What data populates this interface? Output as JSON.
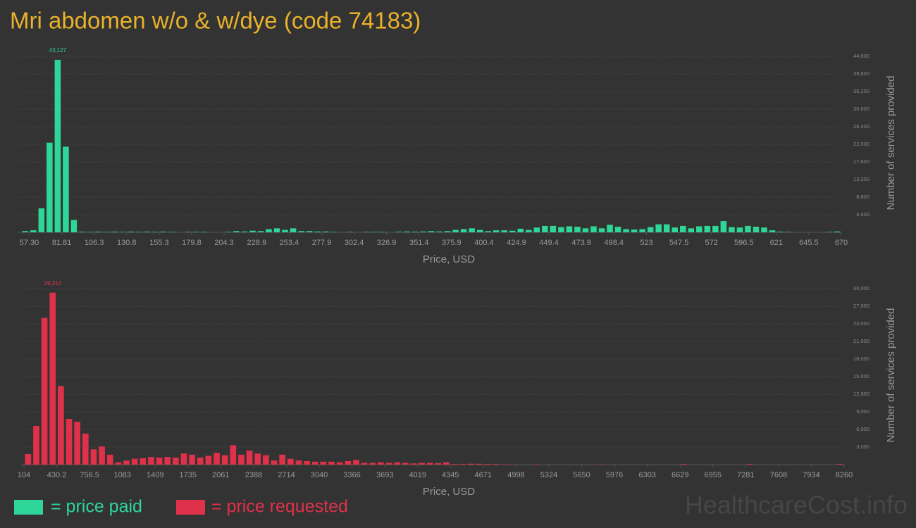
{
  "title": "Mri abdomen w/o & w/dye (code 74183)",
  "watermark": "HealthcareCost.info",
  "chart_data": [
    {
      "type": "histogram",
      "bins": [
        51.17,
        57.3,
        63.43,
        69.55,
        75.68,
        81.81,
        87.94,
        94.06,
        100.19,
        106.32,
        112.44,
        118.57,
        124.7,
        130.82,
        136.95,
        143.08,
        149.21,
        155.33,
        161.46,
        167.59,
        173.71,
        179.84,
        185.97,
        192.09,
        198.22,
        204.35,
        210.48,
        216.6,
        222.73,
        228.86,
        234.98,
        241.11,
        247.24,
        253.36,
        259.49,
        265.62,
        271.74,
        277.87,
        284.0,
        290.13,
        296.25,
        302.38,
        308.51,
        314.63,
        320.76,
        326.89,
        333.02,
        339.14,
        345.27,
        351.4,
        357.52,
        363.65,
        369.78,
        375.9,
        382.03,
        388.16,
        394.29,
        400.41,
        406.54,
        412.67,
        418.79,
        424.92,
        431.05,
        437.17,
        443.3,
        449.43,
        455.56,
        461.68,
        467.81,
        473.94,
        480.06,
        486.19,
        492.32,
        498.44,
        504.57,
        510.7,
        516.83,
        522.95,
        529.08,
        535.21,
        541.33,
        547.46,
        553.59,
        559.71,
        565.84,
        571.97,
        578.1,
        584.22,
        590.35,
        596.48,
        602.6,
        608.73,
        614.86,
        620.98,
        627.11,
        633.24,
        639.37,
        645.49,
        651.62,
        657.75,
        663.87,
        670.0
      ],
      "series": [
        {
          "name": "= price paid",
          "color": "#2ed69a",
          "values": [
            300,
            500,
            6000,
            22400,
            43127,
            21400,
            3100,
            150,
            100,
            150,
            100,
            150,
            100,
            150,
            100,
            150,
            100,
            150,
            100,
            0,
            100,
            100,
            100,
            0,
            0,
            100,
            300,
            200,
            400,
            300,
            800,
            1000,
            600,
            1000,
            300,
            300,
            200,
            200,
            100,
            0,
            100,
            0,
            100,
            100,
            100,
            0,
            150,
            200,
            150,
            200,
            300,
            200,
            300,
            600,
            800,
            1000,
            600,
            300,
            500,
            500,
            400,
            900,
            600,
            1200,
            1600,
            1600,
            1300,
            1500,
            1400,
            1000,
            1500,
            1000,
            1900,
            1400,
            800,
            700,
            800,
            1300,
            2000,
            2000,
            1200,
            1600,
            1000,
            1500,
            1600,
            1600,
            2800,
            1300,
            1200,
            1600,
            1400,
            1200,
            500,
            150,
            100,
            0,
            0,
            0,
            0,
            100,
            200
          ],
          "value_labels": [
            null,
            null,
            null,
            null,
            "43,127",
            null,
            null,
            null,
            null,
            null,
            null,
            null,
            null,
            null,
            null,
            null,
            null,
            null,
            null,
            null,
            null,
            null,
            null,
            null,
            null,
            null,
            null,
            null,
            null,
            null,
            null,
            null,
            null,
            null,
            null,
            null,
            null,
            null,
            null,
            null,
            null,
            null,
            null,
            null,
            null,
            null,
            null,
            null,
            null,
            null,
            null,
            null,
            null,
            null,
            null,
            null,
            null,
            null,
            null,
            null,
            null,
            null,
            null,
            null,
            null,
            null,
            null,
            null,
            null,
            null,
            null,
            null,
            null,
            null,
            null,
            null,
            null,
            null,
            null,
            null,
            null,
            null,
            null,
            null,
            null,
            null,
            null,
            null,
            null,
            null,
            null,
            null,
            null,
            null,
            null,
            null,
            null,
            null,
            null,
            null,
            null
          ]
        }
      ],
      "xlim": [
        51.17,
        670
      ],
      "ylim": [
        0,
        44000
      ],
      "xticks": [
        {
          "value": 57.3,
          "label": "57.30"
        },
        81.81,
        106.3,
        130.8,
        155.3,
        179.8,
        204.3,
        228.9,
        253.4,
        277.9,
        302.4,
        326.9,
        351.4,
        375.9,
        400.4,
        424.9,
        449.4,
        473.9,
        498.4,
        523,
        547.5,
        572,
        596.5,
        621,
        645.5,
        670
      ],
      "yticks": [
        {
          "value": 4400,
          "label": "4,400"
        },
        {
          "value": 8800,
          "label": "8,800"
        },
        {
          "value": 13200,
          "label": "13,200"
        },
        {
          "value": 17600,
          "label": "17,600"
        },
        {
          "value": 22000,
          "label": "22,000"
        },
        {
          "value": 26400,
          "label": "26,400"
        },
        {
          "value": 30800,
          "label": "30,800"
        },
        {
          "value": 35200,
          "label": "35,200"
        },
        {
          "value": 39600,
          "label": "39,600"
        },
        {
          "value": 44000,
          "label": "44,000"
        }
      ],
      "xlabel": "Price, USD",
      "ylabel": "Number of services provided",
      "grid": true
    },
    {
      "type": "histogram",
      "bins": [
        104,
        185.56,
        267.12,
        348.68,
        430.24,
        511.8,
        593.36,
        674.92,
        756.48,
        838.04,
        919.6,
        1001.16,
        1082.72,
        1164.28,
        1245.84,
        1327.4,
        1408.96,
        1490.52,
        1572.08,
        1653.64,
        1735.2,
        1816.76,
        1898.32,
        1979.88,
        2061.44,
        2143,
        2224.56,
        2306.12,
        2387.68,
        2469.24,
        2550.8,
        2632.36,
        2713.92,
        2795.48,
        2877.04,
        2958.6,
        3040.16,
        3121.72,
        3203.28,
        3284.84,
        3366.4,
        3447.96,
        3529.52,
        3611.08,
        3692.64,
        3774.2,
        3855.76,
        3937.32,
        4018.88,
        4100.44,
        4182,
        4263.56,
        4345.12,
        4426.68,
        4508.24,
        4589.8,
        4671.36,
        4752.92,
        4834.48,
        4916.04,
        4997.6,
        5079.16,
        5160.72,
        5242.28,
        5323.84,
        5405.4,
        5486.96,
        5568.52,
        5650.08,
        5731.64,
        5813.2,
        5894.76,
        5976.32,
        6057.88,
        6139.44,
        6221,
        6302.56,
        6384.12,
        6465.68,
        6547.24,
        6628.8,
        6710.36,
        6791.92,
        6873.48,
        6955.04,
        7036.6,
        7118.16,
        7199.72,
        7281.28,
        7362.84,
        7444.4,
        7525.96,
        7607.52,
        7689.08,
        7770.64,
        7852.2,
        7933.76,
        8015.32,
        8096.88,
        8178.44,
        8260
      ],
      "series": [
        {
          "name": "= price requested",
          "color": "#e0314a",
          "values": [
            1800,
            6600,
            25000,
            29314,
            13400,
            7800,
            7300,
            5300,
            2600,
            3100,
            1700,
            400,
            700,
            1000,
            1100,
            1300,
            1200,
            1300,
            1200,
            1900,
            1700,
            1200,
            1500,
            2000,
            1600,
            3300,
            1700,
            2400,
            1900,
            1600,
            700,
            1700,
            1000,
            700,
            600,
            500,
            500,
            500,
            400,
            600,
            800,
            300,
            300,
            400,
            300,
            400,
            300,
            200,
            300,
            300,
            250,
            400,
            100,
            100,
            150,
            150,
            100,
            100,
            50,
            50,
            0,
            0,
            50,
            0,
            0,
            0,
            0,
            0,
            0,
            0,
            50,
            0,
            0,
            0,
            0,
            0,
            0,
            0,
            0,
            0,
            100,
            0,
            0,
            0,
            0,
            0,
            0,
            0,
            100,
            0,
            0,
            0,
            0,
            0,
            0,
            0,
            0,
            0,
            0,
            100
          ],
          "value_labels": [
            null,
            null,
            null,
            "29,314",
            null,
            null,
            null,
            null,
            null,
            null,
            null,
            null,
            null,
            null,
            null,
            null,
            null,
            null,
            null,
            null,
            null,
            null,
            null,
            null,
            null,
            null,
            null,
            null,
            null,
            null,
            null,
            null,
            null,
            null,
            null,
            null,
            null,
            null,
            null,
            null,
            null,
            null,
            null,
            null,
            null,
            null,
            null,
            null,
            null,
            null,
            null,
            null,
            null,
            null,
            null,
            null,
            null,
            null,
            null,
            null,
            null,
            null,
            null,
            null,
            null,
            null,
            null,
            null,
            null,
            null,
            null,
            null,
            null,
            null,
            null,
            null,
            null,
            null,
            null,
            null,
            null,
            null,
            null,
            null,
            null,
            null,
            null,
            null,
            null,
            null,
            null,
            null,
            null,
            null,
            null,
            null,
            null,
            null,
            null,
            null
          ]
        }
      ],
      "xlim": [
        104,
        8260
      ],
      "ylim": [
        0,
        30000
      ],
      "xticks": [
        104,
        430.2,
        756.5,
        1083,
        1409,
        1735,
        2061,
        2388,
        2714,
        3040,
        3366,
        3693,
        4019,
        4345,
        4671,
        4998,
        5324,
        5650,
        5976,
        6303,
        6629,
        6955,
        7281,
        7608,
        7934,
        8260
      ],
      "yticks": [
        {
          "value": 3000,
          "label": "3,000"
        },
        {
          "value": 6000,
          "label": "6,000"
        },
        {
          "value": 9000,
          "label": "9,000"
        },
        {
          "value": 12000,
          "label": "12,000"
        },
        {
          "value": 15000,
          "label": "15,000"
        },
        {
          "value": 18000,
          "label": "18,000"
        },
        {
          "value": 21000,
          "label": "21,000"
        },
        {
          "value": 24000,
          "label": "24,000"
        },
        {
          "value": 27000,
          "label": "27,000"
        },
        {
          "value": 30000,
          "label": "30,000"
        }
      ],
      "xlabel": "Price, USD",
      "ylabel": "Number of services provided",
      "grid": true
    }
  ]
}
